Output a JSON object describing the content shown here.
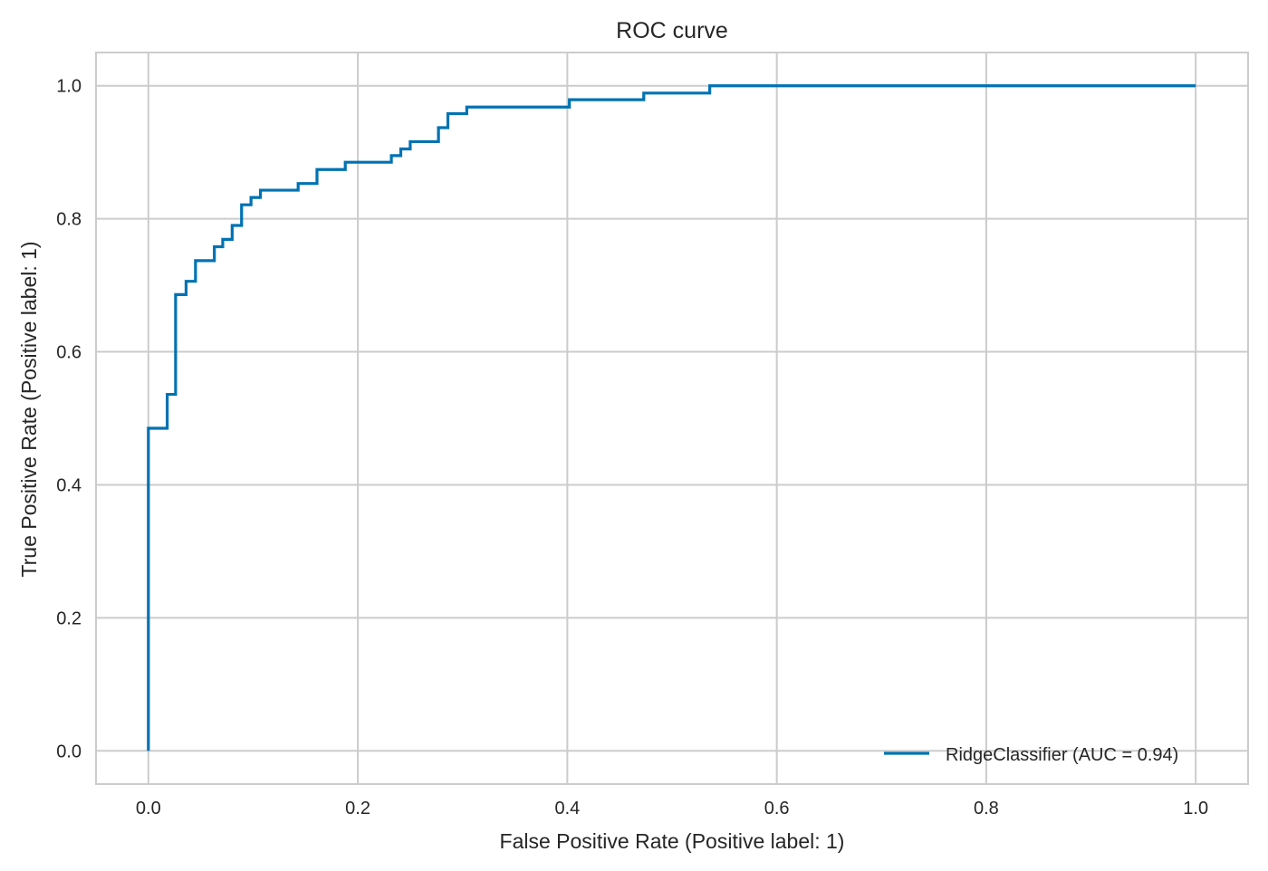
{
  "chart_data": {
    "type": "line",
    "title": "ROC curve",
    "xlabel": "False Positive Rate (Positive label: 1)",
    "ylabel": "True Positive Rate (Positive label: 1)",
    "xlim": [
      -0.05,
      1.05
    ],
    "ylim": [
      -0.05,
      1.05
    ],
    "xticks": [
      0.0,
      0.2,
      0.4,
      0.6,
      0.8,
      1.0
    ],
    "yticks": [
      0.0,
      0.2,
      0.4,
      0.6,
      0.8,
      1.0
    ],
    "xtick_labels": [
      "0.0",
      "0.2",
      "0.4",
      "0.6",
      "0.8",
      "1.0"
    ],
    "ytick_labels": [
      "0.0",
      "0.2",
      "0.4",
      "0.6",
      "0.8",
      "1.0"
    ],
    "grid": true,
    "legend_position": "lower right",
    "series": [
      {
        "name": "RidgeClassifier (AUC = 0.94)",
        "color": "#0072b2",
        "x": [
          0.0,
          0.0,
          0.018,
          0.018,
          0.026,
          0.026,
          0.036,
          0.036,
          0.045,
          0.045,
          0.063,
          0.063,
          0.071,
          0.071,
          0.08,
          0.08,
          0.089,
          0.089,
          0.098,
          0.098,
          0.107,
          0.107,
          0.143,
          0.143,
          0.161,
          0.161,
          0.188,
          0.188,
          0.232,
          0.232,
          0.241,
          0.241,
          0.25,
          0.25,
          0.277,
          0.277,
          0.286,
          0.286,
          0.304,
          0.304,
          0.402,
          0.402,
          0.473,
          0.473,
          0.536,
          0.536,
          1.0
        ],
        "y": [
          0.0,
          0.485,
          0.485,
          0.536,
          0.536,
          0.686,
          0.686,
          0.706,
          0.706,
          0.737,
          0.737,
          0.758,
          0.758,
          0.769,
          0.769,
          0.79,
          0.79,
          0.821,
          0.821,
          0.832,
          0.832,
          0.843,
          0.843,
          0.853,
          0.853,
          0.874,
          0.874,
          0.885,
          0.885,
          0.895,
          0.895,
          0.905,
          0.905,
          0.916,
          0.916,
          0.937,
          0.937,
          0.958,
          0.958,
          0.968,
          0.968,
          0.979,
          0.979,
          0.989,
          0.989,
          1.0,
          1.0
        ]
      }
    ]
  }
}
